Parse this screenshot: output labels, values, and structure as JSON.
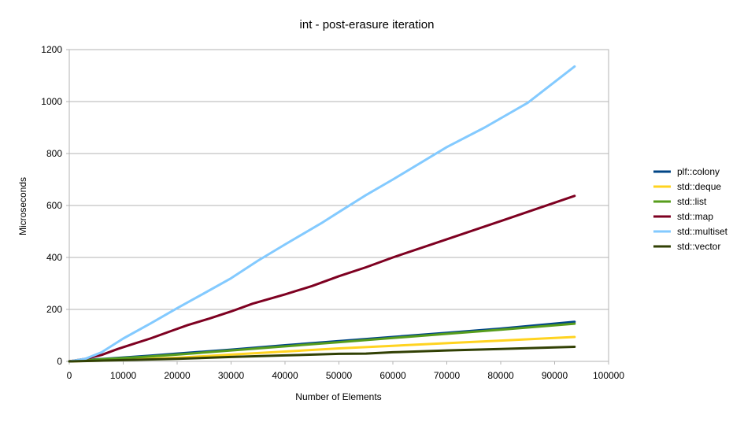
{
  "chart_data": {
    "type": "line",
    "title": "int - post-erasure iteration",
    "xlabel": "Number of Elements",
    "ylabel": "Microseconds",
    "xlim": [
      0,
      100000
    ],
    "ylim": [
      0,
      1200
    ],
    "x_ticks": [
      "0",
      "10000",
      "20000",
      "30000",
      "40000",
      "50000",
      "60000",
      "70000",
      "80000",
      "90000",
      "100000"
    ],
    "y_ticks": [
      "0",
      "200",
      "400",
      "600",
      "800",
      "1000",
      "1200"
    ],
    "grid": true,
    "legend_position": "right",
    "series": [
      {
        "name": "plf::colony",
        "color": "#004586",
        "points": [
          [
            0,
            0
          ],
          [
            2000,
            4
          ],
          [
            5000,
            8
          ],
          [
            10000,
            15
          ],
          [
            15000,
            22
          ],
          [
            20000,
            30
          ],
          [
            30000,
            45
          ],
          [
            40000,
            62
          ],
          [
            50000,
            78
          ],
          [
            60000,
            94
          ],
          [
            70000,
            110
          ],
          [
            80000,
            126
          ],
          [
            93700,
            152
          ]
        ]
      },
      {
        "name": "std::deque",
        "color": "#ffd320",
        "points": [
          [
            0,
            0
          ],
          [
            5000,
            3
          ],
          [
            10000,
            6
          ],
          [
            20000,
            14
          ],
          [
            30000,
            26
          ],
          [
            40000,
            38
          ],
          [
            50000,
            50
          ],
          [
            60000,
            60
          ],
          [
            70000,
            70
          ],
          [
            80000,
            80
          ],
          [
            93700,
            94
          ]
        ]
      },
      {
        "name": "std::list",
        "color": "#579d1c",
        "points": [
          [
            0,
            0
          ],
          [
            2000,
            3
          ],
          [
            5000,
            7
          ],
          [
            10000,
            13
          ],
          [
            15000,
            19
          ],
          [
            20000,
            26
          ],
          [
            30000,
            42
          ],
          [
            40000,
            58
          ],
          [
            50000,
            74
          ],
          [
            60000,
            90
          ],
          [
            70000,
            106
          ],
          [
            80000,
            122
          ],
          [
            93700,
            145
          ]
        ]
      },
      {
        "name": "std::map",
        "color": "#7e0021",
        "points": [
          [
            0,
            0
          ],
          [
            3000,
            10
          ],
          [
            6000,
            25
          ],
          [
            9000,
            48
          ],
          [
            12000,
            68
          ],
          [
            15000,
            88
          ],
          [
            19000,
            118
          ],
          [
            22000,
            140
          ],
          [
            26000,
            165
          ],
          [
            30000,
            192
          ],
          [
            34000,
            222
          ],
          [
            40000,
            258
          ],
          [
            45000,
            290
          ],
          [
            50000,
            328
          ],
          [
            55000,
            362
          ],
          [
            60000,
            400
          ],
          [
            70000,
            470
          ],
          [
            80000,
            540
          ],
          [
            93700,
            637
          ]
        ]
      },
      {
        "name": "std::multiset",
        "color": "#83caff",
        "points": [
          [
            0,
            0
          ],
          [
            3000,
            10
          ],
          [
            6000,
            35
          ],
          [
            10000,
            88
          ],
          [
            15000,
            145
          ],
          [
            20000,
            205
          ],
          [
            25000,
            262
          ],
          [
            30000,
            320
          ],
          [
            35000,
            388
          ],
          [
            40000,
            450
          ],
          [
            47000,
            535
          ],
          [
            50000,
            575
          ],
          [
            55000,
            640
          ],
          [
            60000,
            700
          ],
          [
            70000,
            825
          ],
          [
            77000,
            900
          ],
          [
            85000,
            995
          ],
          [
            93700,
            1135
          ]
        ]
      },
      {
        "name": "std::vector",
        "color": "#314004",
        "points": [
          [
            0,
            0
          ],
          [
            5000,
            2
          ],
          [
            10000,
            5
          ],
          [
            20000,
            10
          ],
          [
            30000,
            17
          ],
          [
            40000,
            23
          ],
          [
            50000,
            29
          ],
          [
            55000,
            30
          ],
          [
            60000,
            35
          ],
          [
            70000,
            42
          ],
          [
            80000,
            48
          ],
          [
            93700,
            56
          ]
        ]
      }
    ]
  }
}
